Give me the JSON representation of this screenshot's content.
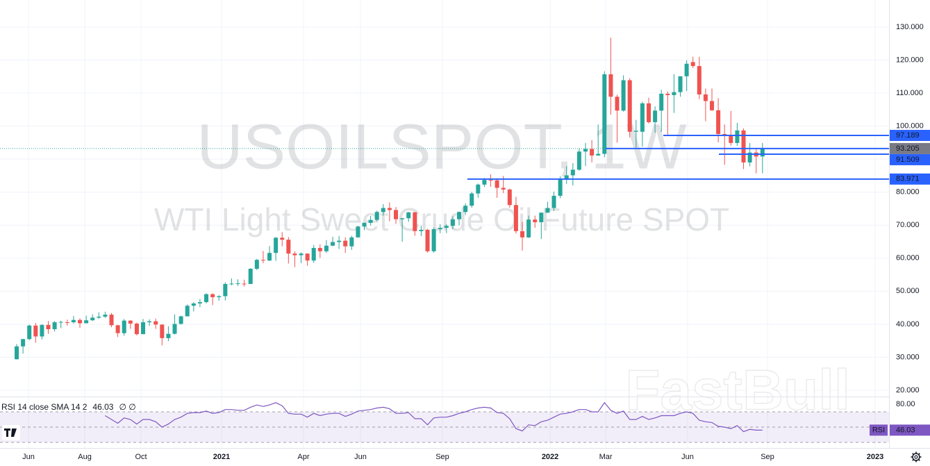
{
  "chart_data": [
    {
      "type": "candlestick",
      "title": "USOILSPOT, 1W",
      "subtitle": "WTI Light Sweet Crude Oil Future SPOT",
      "up_color": "#26a69a",
      "down_color": "#ef5350",
      "grid": true,
      "xlim": [
        -2.64,
        138.02
      ],
      "xticks": [
        {
          "value": 1.87,
          "label": "Jun"
        },
        {
          "value": 10.77,
          "label": "Aug"
        },
        {
          "value": 19.67,
          "label": "Oct"
        },
        {
          "value": 32.42,
          "label": "2021"
        },
        {
          "value": 45.38,
          "label": "Apr"
        },
        {
          "value": 54.4,
          "label": "Jun"
        },
        {
          "value": 67.36,
          "label": "Sep"
        },
        {
          "value": 84.4,
          "label": "2022"
        },
        {
          "value": 93.19,
          "label": "Mar"
        },
        {
          "value": 106.15,
          "label": "Jun"
        },
        {
          "value": 118.79,
          "label": "Sep"
        },
        {
          "value": 135.82,
          "label": "2023"
        }
      ],
      "ylim": [
        18.1,
        138.2
      ],
      "yticks": [
        {
          "value": 20,
          "label": "20.000"
        },
        {
          "value": 30,
          "label": "30.000"
        },
        {
          "value": 40,
          "label": "40.000"
        },
        {
          "value": 50,
          "label": "50.000"
        },
        {
          "value": 60,
          "label": "60.000"
        },
        {
          "value": 70,
          "label": "70.000"
        },
        {
          "value": 80,
          "label": "80.000"
        },
        {
          "value": 90,
          "label": "90.000"
        },
        {
          "value": 100,
          "label": "100.000"
        },
        {
          "value": 110,
          "label": "110.000"
        },
        {
          "value": 120,
          "label": "120.000"
        },
        {
          "value": 130,
          "label": "130.000"
        }
      ],
      "open": [
        29.4,
        33.3,
        35.5,
        39.6,
        36.3,
        39.8,
        38.5,
        40.6,
        40.6,
        40.6,
        41.3,
        40.3,
        41.2,
        42.0,
        42.3,
        42.9,
        39.7,
        37.3,
        41.1,
        40.2,
        37.0,
        40.6,
        40.9,
        39.9,
        35.8,
        37.1,
        40.1,
        42.4,
        45.6,
        46.3,
        46.7,
        49.1,
        48.2,
        48.5,
        52.2,
        52.3,
        52.3,
        52.2,
        56.8,
        59.5,
        59.3,
        61.6,
        66.2,
        65.6,
        61.4,
        60.9,
        61.4,
        59.3,
        63.1,
        62.1,
        63.8,
        64.9,
        65.3,
        63.6,
        66.3,
        69.6,
        70.7,
        71.6,
        74.0,
        75.2,
        74.6,
        71.8,
        72.1,
        73.9,
        68.2,
        68.6,
        62.1,
        68.8,
        69.2,
        69.8,
        71.8,
        74.0,
        75.9,
        79.6,
        82.3,
        83.7,
        83.6,
        81.3,
        80.8,
        76.1,
        68.2,
        66.3,
        71.7,
        70.9,
        73.8,
        75.2,
        78.9,
        83.8,
        85.1,
        86.8,
        92.3,
        93.1,
        91.1,
        91.6,
        115.7,
        108.9,
        104.7,
        113.9,
        98.3,
        98.3,
        106.9,
        101.2,
        104.7,
        109.8,
        109.4,
        110.3,
        115.1,
        119.4,
        118.2,
        109.6,
        107.6,
        104.8,
        97.6,
        97.4,
        94.9,
        98.7,
        89.0,
        92.0,
        90.8
      ],
      "high": [
        34.0,
        35.6,
        39.9,
        40.4,
        40.0,
        41.0,
        41.0,
        41.1,
        41.4,
        42.5,
        41.8,
        42.6,
        43.0,
        43.6,
        43.8,
        43.4,
        39.8,
        41.6,
        41.2,
        40.5,
        41.6,
        41.5,
        41.7,
        40.0,
        39.4,
        43.0,
        42.6,
        46.0,
        46.7,
        47.7,
        49.4,
        49.4,
        48.8,
        52.7,
        53.9,
        53.6,
        53.5,
        57.0,
        59.8,
        62.2,
        63.7,
        66.4,
        67.9,
        66.4,
        62.1,
        61.8,
        61.5,
        64.0,
        64.2,
        65.5,
        66.5,
        66.7,
        66.3,
        66.8,
        69.8,
        70.8,
        72.8,
        74.4,
        76.4,
        76.9,
        75.5,
        72.2,
        74.0,
        74.0,
        69.8,
        68.9,
        69.3,
        70.3,
        70.3,
        72.7,
        74.2,
        76.6,
        80.1,
        82.6,
        84.3,
        85.4,
        84.2,
        84.9,
        81.1,
        78.6,
        71.0,
        72.9,
        72.9,
        73.8,
        77.1,
        80.2,
        84.8,
        87.9,
        88.8,
        93.2,
        94.9,
        95.8,
        100.5,
        116.6,
        126.8,
        109.5,
        115.4,
        114.5,
        101.9,
        107.4,
        108.6,
        106.0,
        111.0,
        110.5,
        115.7,
        115.1,
        119.9,
        121.0,
        121.0,
        111.4,
        111.4,
        108.5,
        100.5,
        104.6,
        101.0,
        99.3,
        94.9,
        93.3,
        94.9
      ],
      "low": [
        29.3,
        31.1,
        35.2,
        34.4,
        35.4,
        37.1,
        37.8,
        38.8,
        39.6,
        40.2,
        38.9,
        40.3,
        41.0,
        41.6,
        41.9,
        39.1,
        36.1,
        36.5,
        38.6,
        36.6,
        37.0,
        39.5,
        38.6,
        33.6,
        34.9,
        36.9,
        39.9,
        42.4,
        43.9,
        45.2,
        46.3,
        45.8,
        47.1,
        47.2,
        51.8,
        51.6,
        51.4,
        52.2,
        56.4,
        58.5,
        59.1,
        59.2,
        63.6,
        58.4,
        57.3,
        58.5,
        57.7,
        58.6,
        60.1,
        61.6,
        63.6,
        62.8,
        61.6,
        62.5,
        66.3,
        68.5,
        69.9,
        71.2,
        72.9,
        71.2,
        70.4,
        65.0,
        71.0,
        66.8,
        66.7,
        61.7,
        61.7,
        67.6,
        67.6,
        68.8,
        70.0,
        73.1,
        75.3,
        78.3,
        81.6,
        81.6,
        78.3,
        79.7,
        75.3,
        67.5,
        62.3,
        66.1,
        69.2,
        65.8,
        73.7,
        74.3,
        78.2,
        82.5,
        82.0,
        86.5,
        87.9,
        89.0,
        91.1,
        90.6,
        103.5,
        95.0,
        104.4,
        96.6,
        93.5,
        93.8,
        100.8,
        98.0,
        98.2,
        97.3,
        104.0,
        108.9,
        110.6,
        117.6,
        108.2,
        101.5,
        104.6,
        95.1,
        88.3,
        94.1,
        94.0,
        87.0,
        87.8,
        85.7,
        85.7
      ],
      "close": [
        33.3,
        35.5,
        39.6,
        36.3,
        39.8,
        38.5,
        40.6,
        40.7,
        40.5,
        41.3,
        40.3,
        41.2,
        42.0,
        42.3,
        42.9,
        39.7,
        37.3,
        41.1,
        40.2,
        37.0,
        40.6,
        40.9,
        39.9,
        35.8,
        37.1,
        40.1,
        42.4,
        45.6,
        46.3,
        46.7,
        49.1,
        48.2,
        48.5,
        52.2,
        52.3,
        52.4,
        52.2,
        56.8,
        59.5,
        59.3,
        61.6,
        66.2,
        65.6,
        61.4,
        60.9,
        61.4,
        59.3,
        63.1,
        62.1,
        63.8,
        64.9,
        65.3,
        63.6,
        66.3,
        69.6,
        70.7,
        71.6,
        74.0,
        75.2,
        74.6,
        71.8,
        72.1,
        73.9,
        68.2,
        68.6,
        62.1,
        68.8,
        69.2,
        69.8,
        71.8,
        74.0,
        75.9,
        79.6,
        82.3,
        83.7,
        83.6,
        81.3,
        80.8,
        76.1,
        68.2,
        66.3,
        71.7,
        70.9,
        73.8,
        75.2,
        78.9,
        83.8,
        85.1,
        86.8,
        92.3,
        93.1,
        91.1,
        91.6,
        115.7,
        108.9,
        104.7,
        113.9,
        98.3,
        98.6,
        106.9,
        101.2,
        104.7,
        109.8,
        109.4,
        110.3,
        115.1,
        118.9,
        118.2,
        109.6,
        107.6,
        104.8,
        97.6,
        97.4,
        94.9,
        98.7,
        89.0,
        92.0,
        90.8,
        93.2
      ],
      "levels": [
        {
          "value": 97.189,
          "start": 102.3
        },
        {
          "value": 91.509,
          "start": 111.1
        },
        {
          "value": 83.971,
          "start": 71.3
        }
      ],
      "level_color": "#2962ff",
      "last_price": {
        "value": 93.205,
        "line_start": 93.2,
        "color": "#787b86"
      }
    },
    {
      "type": "line",
      "name": "RSI 14 close SMA 14 2",
      "na_marks": "∅ ∅",
      "tag": "RSI",
      "color": "#7e57c2",
      "ylim": [
        22.7,
        89.1
      ],
      "yticks": [
        {
          "value": 80,
          "label": "80.00"
        }
      ],
      "levels": [
        70,
        50,
        30
      ],
      "values": [
        null,
        null,
        null,
        null,
        null,
        null,
        null,
        null,
        null,
        null,
        null,
        null,
        null,
        null,
        65,
        60,
        55,
        62,
        60,
        54,
        60,
        60,
        57,
        50,
        54,
        60,
        63,
        68,
        69,
        69,
        71,
        68,
        69,
        73,
        73,
        72,
        72,
        76,
        79,
        77,
        79,
        82,
        78,
        68,
        67,
        67,
        63,
        68,
        65,
        67,
        68,
        68,
        64,
        67,
        71,
        72,
        73,
        75,
        76,
        74,
        68,
        68,
        69,
        61,
        61,
        53,
        62,
        63,
        63,
        65,
        68,
        70,
        73,
        75,
        76,
        75,
        69,
        68,
        61,
        48,
        45,
        53,
        52,
        57,
        59,
        63,
        67,
        68,
        70,
        73,
        73,
        70,
        70,
        82,
        72,
        68,
        71,
        60,
        60,
        64,
        60,
        62,
        65,
        65,
        65,
        68,
        70,
        68,
        59,
        57,
        56,
        51,
        50,
        48,
        52,
        44,
        47,
        46,
        46.03
      ]
    }
  ],
  "watermark": "FastBull"
}
